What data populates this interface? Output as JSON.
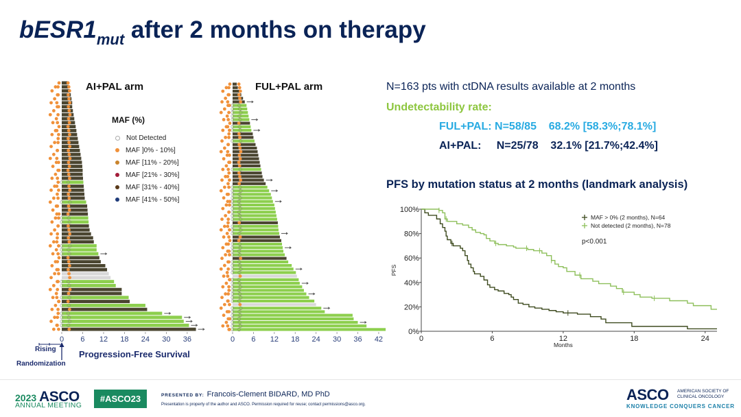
{
  "slide": {
    "title_main": "bESR1",
    "title_sub": "mut",
    "title_rest": " after 2 months on therapy"
  },
  "swimmer": {
    "arm_ai_title": "AI+PAL arm",
    "arm_ful_title": "FUL+PAL arm",
    "legend_title": "MAF (%)",
    "legend": [
      {
        "label": "Not Detected",
        "color": "#ffffff",
        "type": "nd"
      },
      {
        "label": "MAF ]0% - 10%]",
        "color": "#f0913a"
      },
      {
        "label": "MAF [11% - 20%]",
        "color": "#c9842d"
      },
      {
        "label": "MAF [21% - 30%]",
        "color": "#a31d3a"
      },
      {
        "label": "MAF [31% - 40%]",
        "color": "#5a3a1a"
      },
      {
        "label": "MAF [41% - 50%]",
        "color": "#1f3b7a"
      }
    ],
    "bar_colors": {
      "progressed": "#4a4530",
      "censored": "#8dcf4e",
      "unknown": "#d9d9d9"
    },
    "rising_label": "Rising",
    "randomization_label": "Randomization",
    "xlabel": "Progression-Free Survival",
    "ai_ticks": [
      "0",
      "6",
      "12",
      "18",
      "24",
      "30",
      "36"
    ],
    "ful_ticks": [
      "0",
      "6",
      "12",
      "18",
      "24",
      "30",
      "36",
      "42"
    ]
  },
  "right": {
    "n_text": "N=163 pts with ctDNA results available  at 2 months",
    "undetect_label": "Undetectability rate:",
    "ful_line": "FUL+PAL: N=58/85    68.2% [58.3%;78.1%]",
    "ai_line": "AI+PAL:     N=25/78    32.1% [21.7%;42.4%]",
    "km_title": "PFS by mutation status at 2 months (landmark analysis)"
  },
  "chart_data": [
    {
      "type": "line",
      "title": "PFS by mutation status at 2 months (landmark analysis)",
      "xlabel": "Months",
      "ylabel": "PFS",
      "xlim": [
        0,
        25
      ],
      "ylim": [
        0,
        100
      ],
      "x_ticks": [
        "0",
        "6",
        "12",
        "18",
        "24"
      ],
      "y_ticks": [
        "0%",
        "20%",
        "40%",
        "60%",
        "80%",
        "100%"
      ],
      "annotation": "p<0.001",
      "legend_position": "top-right",
      "series": [
        {
          "name": "MAF > 0% (2 months), N=64",
          "color": "#3d4a1e",
          "x": [
            0,
            0.3,
            0.6,
            1.3,
            1.6,
            1.8,
            2.0,
            2.1,
            2.2,
            2.5,
            2.7,
            2.9,
            3.3,
            3.5,
            3.7,
            3.9,
            4.0,
            4.2,
            4.4,
            4.5,
            5.0,
            5.3,
            5.6,
            5.8,
            6.2,
            6.5,
            7.0,
            7.4,
            7.6,
            7.8,
            8.2,
            8.6,
            9.1,
            9.6,
            10.2,
            10.8,
            11.4,
            12.0,
            12.4,
            13.2,
            14.3,
            15.2,
            15.6,
            17.1,
            17.8,
            22.5,
            25
          ],
          "y": [
            100,
            97,
            95,
            92,
            88,
            85,
            82,
            78,
            75,
            72,
            70,
            70,
            68,
            66,
            62,
            58,
            55,
            52,
            49,
            47,
            45,
            42,
            38,
            36,
            34,
            33,
            31,
            30,
            28,
            26,
            23,
            22,
            20,
            19,
            18,
            17,
            16,
            15,
            15,
            14,
            12,
            10,
            7,
            7,
            4,
            2,
            2
          ],
          "censor_x": [
            2.6,
            12.4
          ]
        },
        {
          "name": "Not detected (2 months), N=78",
          "color": "#8dbf5a",
          "x": [
            0,
            1.5,
            1.8,
            2.0,
            2.2,
            3.0,
            3.5,
            4.0,
            4.3,
            4.6,
            5.0,
            5.3,
            5.5,
            5.8,
            6.2,
            6.5,
            7.2,
            7.8,
            8.0,
            8.5,
            9.0,
            9.5,
            10.2,
            10.6,
            11.0,
            11.3,
            11.6,
            12.0,
            12.3,
            13.0,
            13.5,
            14.5,
            15.0,
            16.0,
            16.5,
            17.0,
            18.0,
            18.5,
            19.5,
            21.0,
            22.5,
            23.0,
            24.5,
            25
          ],
          "y": [
            100,
            99,
            97,
            92,
            90,
            88,
            87,
            85,
            83,
            81,
            80,
            79,
            76,
            74,
            72,
            71,
            70,
            69,
            68,
            68,
            67,
            66,
            64,
            62,
            58,
            55,
            53,
            52,
            49,
            46,
            43,
            41,
            39,
            37,
            35,
            32,
            30,
            28,
            27,
            25,
            23,
            21,
            18,
            18
          ],
          "censor_x": [
            1.5,
            2.1,
            6.3,
            8.9,
            10.0,
            11.0,
            13.4,
            17.1,
            19.7
          ]
        }
      ]
    },
    {
      "type": "bar",
      "title": "AI+PAL arm",
      "orientation": "horizontal-swimmer",
      "xlabel": "Progression-Free Survival",
      "xlim": [
        -2,
        40
      ],
      "pfs_months": [
        2,
        2.2,
        2.4,
        2.6,
        2.8,
        3,
        3,
        3.2,
        3.4,
        3.6,
        3.8,
        4,
        4.2,
        4.4,
        4.6,
        4.8,
        5,
        5.2,
        5.4,
        5.6,
        5.8,
        5.9,
        6,
        6,
        6.1,
        6.2,
        6.3,
        6.4,
        6.5,
        6.6,
        7.0,
        7.3,
        7.4,
        7.5,
        7.6,
        7.7,
        7.8,
        8.0,
        8.4,
        9.0,
        9.2,
        10,
        10,
        10.5,
        10.8,
        11.2,
        12.5,
        13,
        13.5,
        14,
        15,
        15.5,
        17.2,
        17.2,
        19.2,
        19.5,
        24,
        24.5,
        28.8,
        34.5,
        35,
        36.5,
        38.5
      ],
      "status": [
        "p",
        "p",
        "p",
        "p",
        "p",
        "p",
        "p",
        "p",
        "p",
        "p",
        "p",
        "p",
        "p",
        "p",
        "p",
        "p",
        "p",
        "p",
        "p",
        "p",
        "p",
        "p",
        "p",
        "p",
        "p",
        "c",
        "p",
        "p",
        "p",
        "p",
        "c",
        "p",
        "p",
        "p",
        "c",
        "c",
        "p",
        "p",
        "p",
        "p",
        "p",
        "c",
        "c",
        "c",
        "p",
        "p",
        "p",
        "p",
        "u",
        "u",
        "c",
        "c",
        "p",
        "p",
        "c",
        "p",
        "c",
        "p",
        "c",
        "c",
        "c",
        "c",
        "p"
      ],
      "ongoing": [
        false,
        false,
        false,
        false,
        false,
        false,
        false,
        false,
        false,
        false,
        false,
        false,
        false,
        false,
        false,
        false,
        false,
        false,
        false,
        false,
        false,
        false,
        false,
        false,
        false,
        false,
        false,
        false,
        false,
        false,
        false,
        false,
        false,
        false,
        false,
        false,
        false,
        false,
        false,
        false,
        false,
        false,
        false,
        true,
        false,
        false,
        false,
        false,
        false,
        false,
        false,
        false,
        false,
        false,
        false,
        false,
        false,
        false,
        true,
        true,
        true,
        true,
        true
      ]
    },
    {
      "type": "bar",
      "title": "FUL+PAL arm",
      "orientation": "horizontal-swimmer",
      "xlabel": "Progression-Free Survival",
      "xlim": [
        -2,
        44
      ],
      "pfs_months": [
        1.2,
        1.5,
        2,
        2.5,
        3,
        3.5,
        4,
        4.2,
        4.4,
        4.6,
        4.8,
        5,
        5.2,
        5.4,
        5.8,
        6,
        6.3,
        6.6,
        7,
        7.2,
        7.4,
        7.6,
        7.8,
        8,
        8.2,
        8.4,
        8.6,
        9,
        9.5,
        10,
        10.5,
        11,
        11.3,
        11.6,
        12,
        12.2,
        12.4,
        12.6,
        12.8,
        13,
        13.1,
        13.2,
        13.4,
        13.6,
        14,
        14.2,
        14.4,
        14.6,
        15,
        15.5,
        16,
        17,
        17.5,
        18.2,
        18.5,
        19,
        19.3,
        20,
        20.5,
        21.2,
        22,
        23.5,
        24,
        25.5,
        26.5,
        34.5,
        34.8,
        36,
        38.5,
        44
      ],
      "status": [
        "p",
        "p",
        "p",
        "p",
        "p",
        "p",
        "c",
        "c",
        "c",
        "c",
        "c",
        "p",
        "c",
        "c",
        "p",
        "p",
        "c",
        "p",
        "p",
        "p",
        "p",
        "p",
        "p",
        "p",
        "c",
        "p",
        "p",
        "p",
        "p",
        "c",
        "c",
        "c",
        "c",
        "c",
        "c",
        "c",
        "c",
        "c",
        "c",
        "p",
        "c",
        "c",
        "c",
        "p",
        "p",
        "c",
        "c",
        "c",
        "c",
        "p",
        "c",
        "c",
        "c",
        "c",
        "u",
        "c",
        "c",
        "c",
        "c",
        "c",
        "c",
        "c",
        "u",
        "c",
        "c",
        "c",
        "c",
        "c",
        "c",
        "c"
      ],
      "ongoing": [
        false,
        false,
        false,
        false,
        false,
        true,
        false,
        false,
        false,
        false,
        true,
        false,
        false,
        true,
        false,
        false,
        false,
        false,
        false,
        false,
        false,
        false,
        false,
        false,
        false,
        false,
        false,
        true,
        false,
        false,
        true,
        false,
        false,
        true,
        false,
        false,
        false,
        false,
        false,
        false,
        false,
        false,
        true,
        false,
        false,
        false,
        true,
        false,
        false,
        false,
        false,
        false,
        true,
        false,
        false,
        false,
        true,
        false,
        false,
        true,
        false,
        false,
        false,
        true,
        false,
        false,
        false,
        true,
        false,
        false
      ]
    }
  ],
  "footer": {
    "year": "2023",
    "asco": "ASCO",
    "annual_meeting": "ANNUAL MEETING",
    "hashtag": "#ASCO23",
    "presented_by_label": "PRESENTED BY:",
    "presenter": "Francois-Clement  BIDARD, MD PhD",
    "disclaimer": "Presentation is property of the author and ASCO. Permission required for reuse; contact permissions@asco.org.",
    "asco_logo": "ASCO",
    "asco_full_1": "AMERICAN SOCIETY OF",
    "asco_full_2": "CLINICAL ONCOLOGY",
    "tagline": "KNOWLEDGE CONQUERS CANCER"
  }
}
